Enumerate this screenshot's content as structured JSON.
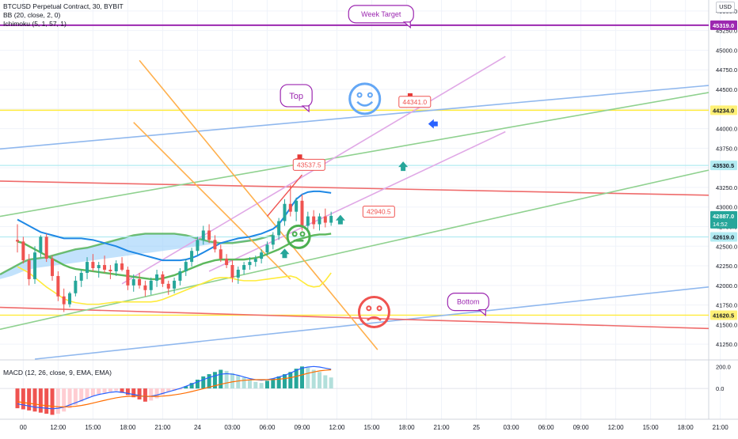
{
  "chart_data": {
    "type": "candlestick",
    "symbol_line": "BTCUSD Perpetual Contract, 30, BYBIT",
    "indicators": [
      "BB (20, close, 2, 0)",
      "Ichimoku (5, 1, 57, 1)"
    ],
    "macd_label": "MACD (12, 26, close, 9, EMA, EMA)",
    "currency": "USD",
    "y_ticks": [
      41250,
      41500,
      41750,
      42000,
      42250,
      42500,
      42750,
      43000,
      43250,
      43500,
      43750,
      44000,
      44250,
      44500,
      44750,
      45000,
      45250,
      45500
    ],
    "y_tick_labels": [
      "41250.0",
      "41500.0",
      "41750.0",
      "42000.0",
      "42250.0",
      "42500.0",
      "42750.0",
      "43000.0",
      "43250.0",
      "43500.0",
      "43750.0",
      "44000.0",
      "44250.0",
      "44500.0",
      "44750.0",
      "45000.0",
      "45250.0",
      "45500.0"
    ],
    "ylim": [
      41050,
      45640
    ],
    "macd_ticks": [
      {
        "value": 200,
        "label": "200.0"
      },
      {
        "value": 0,
        "label": "0.0"
      }
    ],
    "macd_ylim": [
      -280,
      260
    ],
    "x_ticks": [
      "00",
      "12:00",
      "15:00",
      "18:00",
      "21:00",
      "24",
      "03:00",
      "06:00",
      "09:00",
      "12:00",
      "15:00",
      "18:00",
      "21:00",
      "25",
      "03:00",
      "06:00",
      "09:00",
      "12:00",
      "15:00",
      "18:00",
      "21:00"
    ],
    "x_range_hours": [
      -8,
      53
    ],
    "price_labels": [
      {
        "value": 45319.0,
        "text": "45319.0",
        "color": "#9c27b0"
      },
      {
        "value": 44234.0,
        "text": "44234.0",
        "color": "#fff176"
      },
      {
        "value": 43530.5,
        "text": "43530.5",
        "color": "#b2ebf2"
      },
      {
        "value": 42887.0,
        "text": "42887.0",
        "sub": "14:52",
        "color": "#26a69a"
      },
      {
        "value": 42619.0,
        "text": "42619.0",
        "color": "#b2ebf2"
      },
      {
        "value": 41620.5,
        "text": "41620.5",
        "color": "#fff176"
      }
    ],
    "horizontal_lines": [
      {
        "y": 45319,
        "color": "#9c27b0",
        "width": 2
      },
      {
        "y": 44234,
        "color": "#ffeb3b",
        "width": 1.4
      },
      {
        "y": 43530.5,
        "color": "#b2ebf2",
        "width": 1.2
      },
      {
        "y": 42619,
        "color": "#b2ebf2",
        "width": 1.2
      },
      {
        "y": 41620.5,
        "color": "#ffeb3b",
        "width": 1.4
      }
    ],
    "trend_lines": [
      {
        "color": "#90b8ee",
        "points": [
          [
            -8,
            43740
          ],
          [
            53,
            44550
          ]
        ]
      },
      {
        "color": "#90b8ee",
        "points": [
          [
            -5,
            41060
          ],
          [
            53,
            41980
          ]
        ]
      },
      {
        "color": "#ef6b6b",
        "points": [
          [
            -8,
            43330
          ],
          [
            53,
            43150
          ]
        ]
      },
      {
        "color": "#ef6b6b",
        "points": [
          [
            -8,
            41720
          ],
          [
            53,
            41450
          ]
        ]
      },
      {
        "color": "#8fd18f",
        "points": [
          [
            -8,
            42880
          ],
          [
            53,
            44460
          ]
        ]
      },
      {
        "color": "#8fd18f",
        "points": [
          [
            -8,
            41440
          ],
          [
            53,
            43470
          ]
        ]
      },
      {
        "color": "#e0a8e6",
        "points": [
          [
            2.5,
            42020
          ],
          [
            35.5,
            44920
          ]
        ]
      },
      {
        "color": "#e0a8e6",
        "points": [
          [
            10,
            42180
          ],
          [
            35.5,
            43960
          ]
        ]
      },
      {
        "color": "#ffb04d",
        "points": [
          [
            4,
            44870
          ],
          [
            24.5,
            41180
          ]
        ]
      },
      {
        "color": "#ffb04d",
        "points": [
          [
            3.5,
            44080
          ],
          [
            17,
            42080
          ]
        ]
      }
    ],
    "projection_line": {
      "color": "#ef5350",
      "points": [
        [
          15,
          42880
        ],
        [
          18,
          43410
        ]
      ]
    },
    "target_labels": [
      {
        "text": "44341.0",
        "x": 27.7,
        "y": 44341
      },
      {
        "text": "43537.5",
        "x": 18.6,
        "y": 43537.5
      },
      {
        "text": "42940.5",
        "x": 24.6,
        "y": 42940.5
      }
    ],
    "callouts": [
      {
        "text": "Week Target",
        "x": 24.8,
        "y": 45460
      },
      {
        "text": "Top",
        "x": 17.5,
        "y": 44420
      },
      {
        "text": "Bottom",
        "x": 32.3,
        "y": 41790
      }
    ],
    "arrows": [
      {
        "dir": "down",
        "color": "#e53935",
        "x": 17.8,
        "y": 43600
      },
      {
        "dir": "down",
        "color": "#e53935",
        "x": 27.3,
        "y": 44380
      },
      {
        "dir": "up",
        "color": "#26a69a",
        "x": 16.5,
        "y": 42420
      },
      {
        "dir": "up",
        "color": "#26a69a",
        "x": 21.3,
        "y": 42850
      },
      {
        "dir": "up",
        "color": "#26a69a",
        "x": 26.7,
        "y": 43530
      },
      {
        "dir": "left",
        "color": "#2962ff",
        "x": 29.2,
        "y": 44060
      }
    ],
    "smileys": [
      {
        "mood": "happy",
        "color": "#64a7f5",
        "x": 23.4,
        "y": 44380
      },
      {
        "mood": "neutral",
        "color": "#4caf50",
        "x": 17.7,
        "y": 42620
      },
      {
        "mood": "sad",
        "color": "#ef5350",
        "x": 24.2,
        "y": 41660
      }
    ],
    "candles": [
      [
        42580,
        42780,
        42420,
        42560
      ],
      [
        42560,
        42620,
        42280,
        42320
      ],
      [
        42320,
        42400,
        42000,
        42080
      ],
      [
        42080,
        42500,
        42020,
        42420
      ],
      [
        42420,
        42640,
        42360,
        42620
      ],
      [
        42620,
        42660,
        42300,
        42340
      ],
      [
        42340,
        42380,
        42060,
        42120
      ],
      [
        42120,
        42180,
        41800,
        41860
      ],
      [
        41860,
        41960,
        41660,
        41760
      ],
      [
        41760,
        41920,
        41720,
        41900
      ],
      [
        41900,
        42120,
        41860,
        42060
      ],
      [
        42060,
        42200,
        41980,
        42160
      ],
      [
        42160,
        42360,
        42080,
        42300
      ],
      [
        42300,
        42400,
        42180,
        42220
      ],
      [
        42220,
        42300,
        42100,
        42260
      ],
      [
        42260,
        42380,
        42160,
        42200
      ],
      [
        42200,
        42260,
        42080,
        42180
      ],
      [
        42180,
        42320,
        42120,
        42280
      ],
      [
        42280,
        42360,
        42180,
        42200
      ],
      [
        42200,
        42240,
        41940,
        42000
      ],
      [
        42000,
        42140,
        41920,
        42080
      ],
      [
        42080,
        42160,
        41960,
        42000
      ],
      [
        42000,
        42060,
        41860,
        41940
      ],
      [
        41940,
        42100,
        41880,
        42060
      ],
      [
        42060,
        42200,
        41980,
        42140
      ],
      [
        42140,
        42180,
        41980,
        42020
      ],
      [
        42020,
        42060,
        41880,
        41960
      ],
      [
        41960,
        42100,
        41900,
        42060
      ],
      [
        42060,
        42220,
        42000,
        42180
      ],
      [
        42180,
        42340,
        42120,
        42300
      ],
      [
        42300,
        42480,
        42240,
        42440
      ],
      [
        42440,
        42620,
        42380,
        42580
      ],
      [
        42580,
        42760,
        42520,
        42700
      ],
      [
        42700,
        42780,
        42540,
        42580
      ],
      [
        42580,
        42640,
        42420,
        42460
      ],
      [
        42460,
        42520,
        42300,
        42340
      ],
      [
        42340,
        42400,
        42220,
        42260
      ],
      [
        42260,
        42320,
        42040,
        42100
      ],
      [
        42100,
        42240,
        42020,
        42200
      ],
      [
        42200,
        42300,
        42140,
        42260
      ],
      [
        42260,
        42360,
        42200,
        42300
      ],
      [
        42300,
        42380,
        42240,
        42340
      ],
      [
        42340,
        42460,
        42280,
        42420
      ],
      [
        42420,
        42560,
        42380,
        42520
      ],
      [
        42520,
        42680,
        42460,
        42640
      ],
      [
        42640,
        42860,
        42580,
        42820
      ],
      [
        42820,
        43100,
        42760,
        43040
      ],
      [
        43040,
        43280,
        42880,
        42940
      ],
      [
        42940,
        43120,
        42820,
        43080
      ],
      [
        43080,
        43160,
        42700,
        42760
      ],
      [
        42760,
        42940,
        42680,
        42880
      ],
      [
        42880,
        42960,
        42720,
        42780
      ],
      [
        42780,
        42920,
        42700,
        42880
      ],
      [
        42880,
        42980,
        42740,
        42800
      ],
      [
        42800,
        42940,
        42760,
        42887
      ]
    ],
    "candle_start_hour": -6.5,
    "candle_step_hours": 0.5,
    "ichimoku_cloud": {
      "x_start": -8,
      "x_end": 15.5,
      "top": [
        42140,
        42180,
        42220,
        42260,
        42300,
        42330,
        42340,
        42350,
        42360,
        42380,
        42400,
        42420,
        42440,
        42460,
        42470,
        42480,
        42500,
        42520,
        42540,
        42560,
        42580,
        42600,
        42620,
        42640,
        42650,
        42660,
        42660,
        42660,
        42660,
        42660,
        42660,
        42650,
        42640,
        42620,
        42600,
        42580,
        42560,
        42550,
        42540,
        42540,
        42540,
        42550,
        42560,
        42570,
        42580,
        42600,
        42620,
        42640
      ],
      "bottom": [
        42080,
        42100,
        42120,
        42150,
        42180,
        42200,
        42220,
        42230,
        42240,
        42250,
        42260,
        42270,
        42280,
        42290,
        42300,
        42310,
        42320,
        42330,
        42340,
        42350,
        42360,
        42370,
        42380,
        42390,
        42400,
        42410,
        42420,
        42430,
        42440,
        42450,
        42460,
        42470,
        42480,
        42490,
        42500,
        42510,
        42520,
        42530,
        42540,
        42550,
        42560,
        42570,
        42580,
        42590,
        42600,
        42610,
        42620,
        42630
      ]
    },
    "bb_upper": [
      42840,
      42800,
      42760,
      42720,
      42680,
      42660,
      42640,
      42620,
      42600,
      42600,
      42600,
      42600,
      42590,
      42580,
      42560,
      42540,
      42520,
      42500,
      42470,
      42440,
      42420,
      42400,
      42380,
      42360,
      42340,
      42320,
      42320,
      42320,
      42320,
      42330,
      42350,
      42380,
      42420,
      42460,
      42500,
      42540,
      42560,
      42580,
      42600,
      42610,
      42620,
      42640,
      42660,
      42690,
      42720,
      42780,
      42880,
      42990,
      43100,
      43160,
      43190,
      43200,
      43200,
      43190,
      43180
    ],
    "bb_basis": [
      42560,
      42540,
      42500,
      42460,
      42420,
      42380,
      42340,
      42300,
      42260,
      42230,
      42210,
      42200,
      42190,
      42180,
      42170,
      42160,
      42150,
      42140,
      42130,
      42120,
      42110,
      42100,
      42090,
      42080,
      42080,
      42090,
      42110,
      42130,
      42160,
      42190,
      42220,
      42250,
      42280,
      42300,
      42320,
      42330,
      42330,
      42330,
      42330,
      42330,
      42340,
      42350,
      42370,
      42400,
      42430,
      42460,
      42500,
      42540,
      42580,
      42600,
      42620,
      42640,
      42650,
      42650,
      42660
    ],
    "bb_lower": [
      42240,
      42200,
      42160,
      42100,
      42040,
      41980,
      41930,
      41880,
      41830,
      41800,
      41780,
      41770,
      41760,
      41760,
      41760,
      41770,
      41780,
      41790,
      41790,
      41790,
      41790,
      41790,
      41790,
      41790,
      41800,
      41820,
      41850,
      41880,
      41910,
      41940,
      41970,
      42000,
      42030,
      42060,
      42090,
      42100,
      42100,
      42090,
      42070,
      42060,
      42060,
      42060,
      42070,
      42080,
      42090,
      42100,
      42110,
      42120,
      42100,
      42050,
      42000,
      41980,
      41990,
      42060,
      42160
    ],
    "macd_hist": [
      -180,
      -190,
      -200,
      -210,
      -220,
      -230,
      -240,
      -230,
      -210,
      -180,
      -150,
      -120,
      -90,
      -70,
      -50,
      -40,
      -30,
      -20,
      -40,
      -60,
      -80,
      -100,
      -120,
      -110,
      -90,
      -60,
      -30,
      -20,
      -10,
      20,
      50,
      80,
      110,
      130,
      150,
      170,
      160,
      140,
      120,
      100,
      80,
      60,
      50,
      70,
      90,
      110,
      130,
      150,
      180,
      200,
      190,
      170,
      150,
      120,
      100
    ],
    "macd_line": [
      -140,
      -150,
      -160,
      -170,
      -175,
      -180,
      -185,
      -180,
      -170,
      -150,
      -130,
      -110,
      -90,
      -70,
      -55,
      -45,
      -35,
      -30,
      -35,
      -45,
      -55,
      -65,
      -75,
      -70,
      -60,
      -45,
      -30,
      -15,
      0,
      20,
      40,
      60,
      80,
      100,
      115,
      130,
      135,
      130,
      120,
      105,
      90,
      80,
      75,
      80,
      90,
      105,
      120,
      140,
      165,
      185,
      195,
      200,
      195,
      185,
      175
    ],
    "macd_signal": [
      -120,
      -128,
      -135,
      -142,
      -150,
      -156,
      -162,
      -166,
      -168,
      -166,
      -162,
      -155,
      -145,
      -133,
      -120,
      -108,
      -96,
      -85,
      -77,
      -72,
      -70,
      -70,
      -71,
      -72,
      -72,
      -70,
      -65,
      -58,
      -50,
      -40,
      -28,
      -15,
      -2,
      12,
      25,
      38,
      50,
      60,
      68,
      74,
      78,
      80,
      80,
      80,
      81,
      84,
      90,
      98,
      110,
      124,
      138,
      150,
      160,
      166,
      170
    ],
    "bull_color": "#26a69a",
    "bear_color": "#ef5350"
  }
}
